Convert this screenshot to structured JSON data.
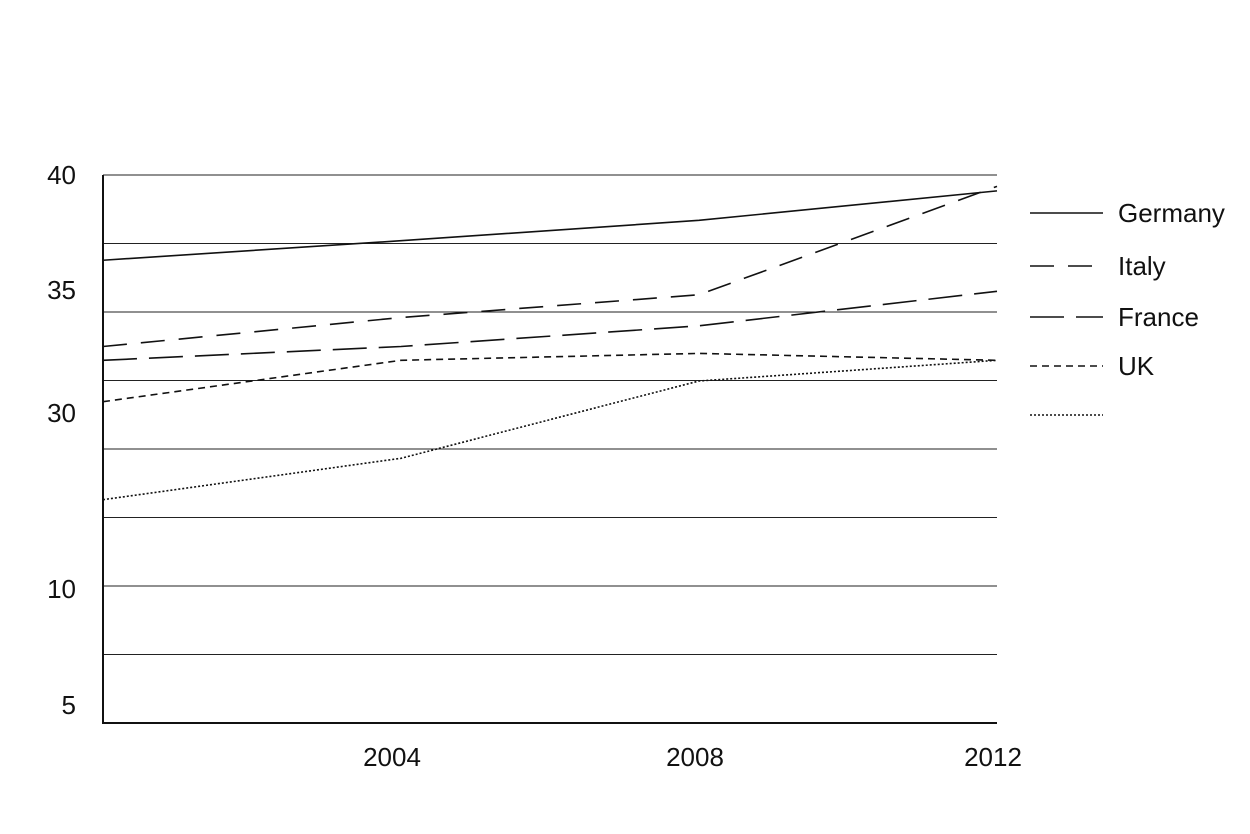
{
  "chart_data": {
    "type": "line",
    "title": "",
    "xlabel": "",
    "ylabel": "",
    "x": [
      2000,
      2004,
      2008,
      2012
    ],
    "x_tick_labels": [
      "2004",
      "2008",
      "2012"
    ],
    "y_tick_labels": [
      "40",
      "35",
      "30",
      "10",
      "5"
    ],
    "grid": true,
    "legend_position": "right",
    "series": [
      {
        "name": "Germany",
        "style": "solid",
        "values": [
          36.5,
          37.1,
          38.0,
          39.3
        ]
      },
      {
        "name": "Italy",
        "style": "long-dash",
        "values": [
          32.5,
          34.6,
          35.5,
          39.5
        ]
      },
      {
        "name": "France",
        "style": "dash-long",
        "values": [
          31.5,
          32.5,
          34.0,
          35.6
        ]
      },
      {
        "name": "UK",
        "style": "short-dash",
        "values": [
          28.5,
          31.5,
          32.0,
          31.5
        ]
      },
      {
        "name": "",
        "style": "dotted",
        "values": [
          21.4,
          24.4,
          30.0,
          31.5
        ]
      }
    ]
  },
  "colors": {
    "line": "#111111",
    "grid": "#222222",
    "background": "#ffffff"
  }
}
